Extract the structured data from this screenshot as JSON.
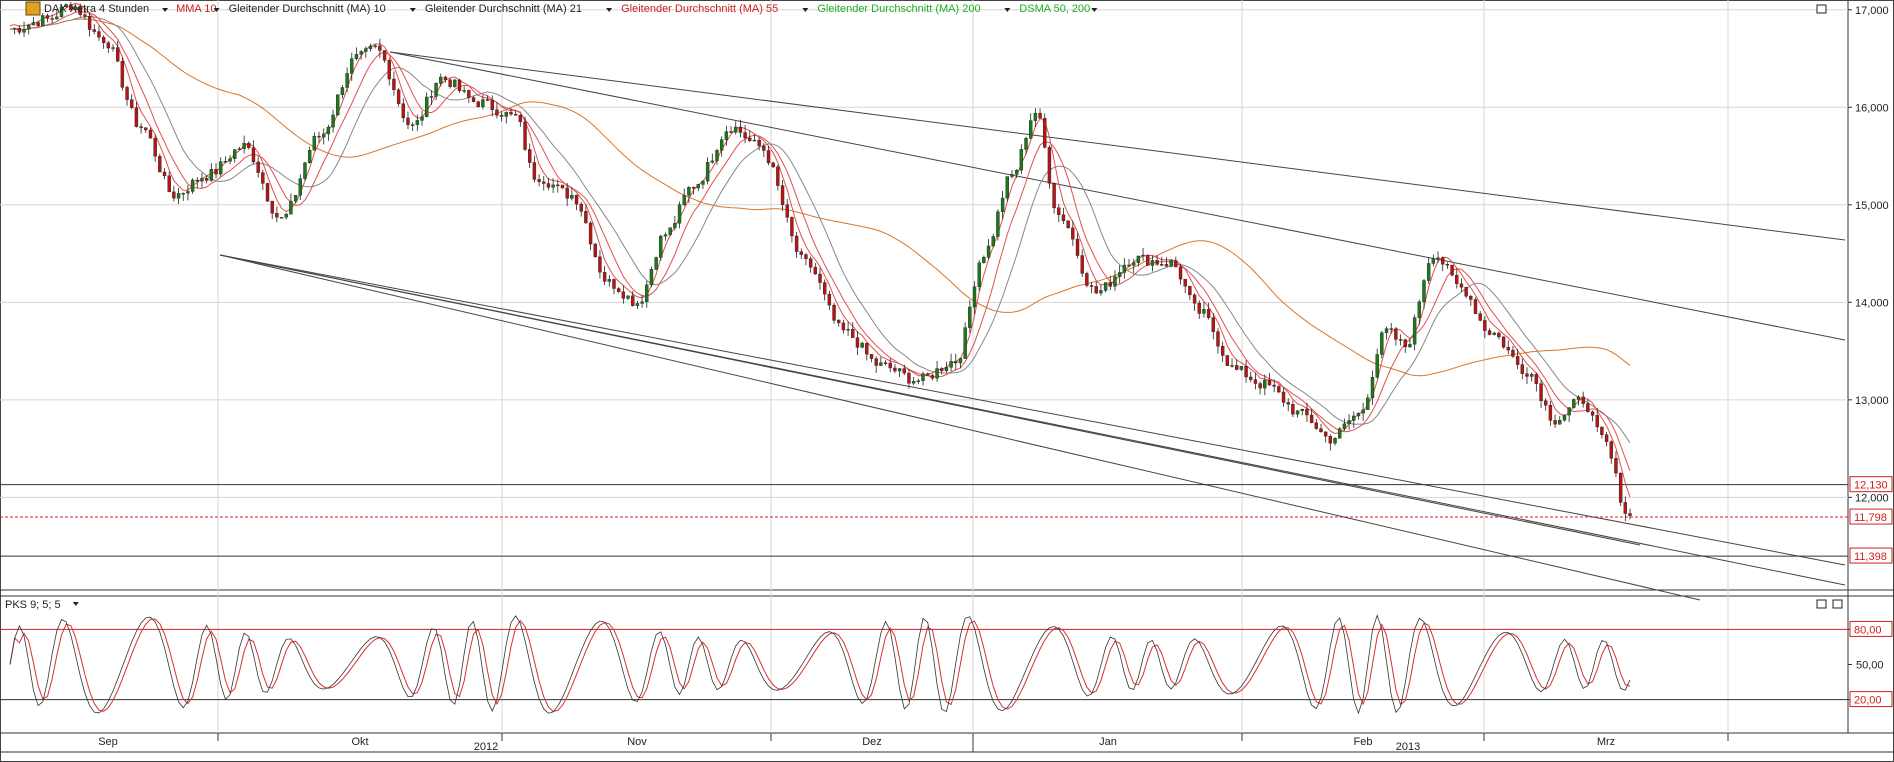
{
  "header": {
    "instrument": "DAX Xetra 4 Stunden",
    "indicators": [
      {
        "label": "MMA 10",
        "color": "#d02020"
      },
      {
        "label": "Gleitender Durchschnitt (MA) 10",
        "color": "#222222"
      },
      {
        "label": "Gleitender Durchschnitt (MA) 21",
        "color": "#222222"
      },
      {
        "label": "Gleitender Durchschnitt (MA) 55",
        "color": "#d02020"
      },
      {
        "label": "Gleitender Durchschnitt (MA) 200",
        "color": "#22b022"
      },
      {
        "label": "DSMA 50, 200",
        "color": "#22b022"
      }
    ]
  },
  "oscillator": {
    "label": "PKS 9; 5; 5",
    "levels": [
      "80,00",
      "50,00",
      "20,00"
    ]
  },
  "colors": {
    "up_candle": "#1a7a1a",
    "down_candle": "#b81414",
    "ma_red": "#e05050",
    "ma_orange": "#d8762a",
    "ma_gray": "#888888",
    "osc_fast": "#333333",
    "osc_slow": "#d83030"
  },
  "chart_data": {
    "type": "line",
    "price_axis": {
      "range": [
        11050,
        17100
      ],
      "ticks": [
        "17,000",
        "16,000",
        "15,000",
        "14,000",
        "13,000",
        "12,000"
      ],
      "markers": [
        {
          "label": "12,130",
          "value": 12130,
          "style": "hline",
          "color": "#d02020"
        },
        {
          "label": "11,798",
          "value": 11798,
          "style": "dotted",
          "color": "#d02020"
        },
        {
          "label": "11,398",
          "value": 11398,
          "style": "hline",
          "color": "#d02020"
        }
      ]
    },
    "time_axis": {
      "months": [
        "Sep",
        "Okt",
        "Nov",
        "Dez",
        "Jan",
        "Feb",
        "Mrz"
      ],
      "years": [
        "2012",
        "2013"
      ]
    },
    "price_series": [
      {
        "t": 0,
        "v": 16800
      },
      {
        "t": 8,
        "v": 16900
      },
      {
        "t": 13,
        "v": 17050
      },
      {
        "t": 20,
        "v": 16700
      },
      {
        "t": 28,
        "v": 15800
      },
      {
        "t": 35,
        "v": 15100
      },
      {
        "t": 42,
        "v": 15300
      },
      {
        "t": 50,
        "v": 15600
      },
      {
        "t": 58,
        "v": 14850
      },
      {
        "t": 66,
        "v": 15700
      },
      {
        "t": 74,
        "v": 16500
      },
      {
        "t": 78,
        "v": 16600
      },
      {
        "t": 86,
        "v": 15800
      },
      {
        "t": 92,
        "v": 16300
      },
      {
        "t": 100,
        "v": 16050
      },
      {
        "t": 108,
        "v": 15900
      },
      {
        "t": 112,
        "v": 15300
      },
      {
        "t": 120,
        "v": 15100
      },
      {
        "t": 128,
        "v": 14200
      },
      {
        "t": 134,
        "v": 14000
      },
      {
        "t": 140,
        "v": 14700
      },
      {
        "t": 146,
        "v": 15200
      },
      {
        "t": 154,
        "v": 15800
      },
      {
        "t": 160,
        "v": 15600
      },
      {
        "t": 170,
        "v": 14400
      },
      {
        "t": 178,
        "v": 13700
      },
      {
        "t": 186,
        "v": 13350
      },
      {
        "t": 194,
        "v": 13200
      },
      {
        "t": 202,
        "v": 13400
      },
      {
        "t": 208,
        "v": 14500
      },
      {
        "t": 214,
        "v": 15300
      },
      {
        "t": 219,
        "v": 15950
      },
      {
        "t": 224,
        "v": 14900
      },
      {
        "t": 232,
        "v": 14100
      },
      {
        "t": 240,
        "v": 14450
      },
      {
        "t": 248,
        "v": 14400
      },
      {
        "t": 254,
        "v": 13900
      },
      {
        "t": 262,
        "v": 13300
      },
      {
        "t": 268,
        "v": 13150
      },
      {
        "t": 276,
        "v": 12850
      },
      {
        "t": 282,
        "v": 12600
      },
      {
        "t": 288,
        "v": 12850
      },
      {
        "t": 294,
        "v": 13700
      },
      {
        "t": 298,
        "v": 13550
      },
      {
        "t": 304,
        "v": 14500
      },
      {
        "t": 310,
        "v": 14150
      },
      {
        "t": 316,
        "v": 13700
      },
      {
        "t": 324,
        "v": 13300
      },
      {
        "t": 330,
        "v": 12800
      },
      {
        "t": 336,
        "v": 13000
      },
      {
        "t": 340,
        "v": 12600
      },
      {
        "t": 346,
        "v": 11798
      }
    ],
    "oscillator_range": [
      0,
      100
    ]
  }
}
